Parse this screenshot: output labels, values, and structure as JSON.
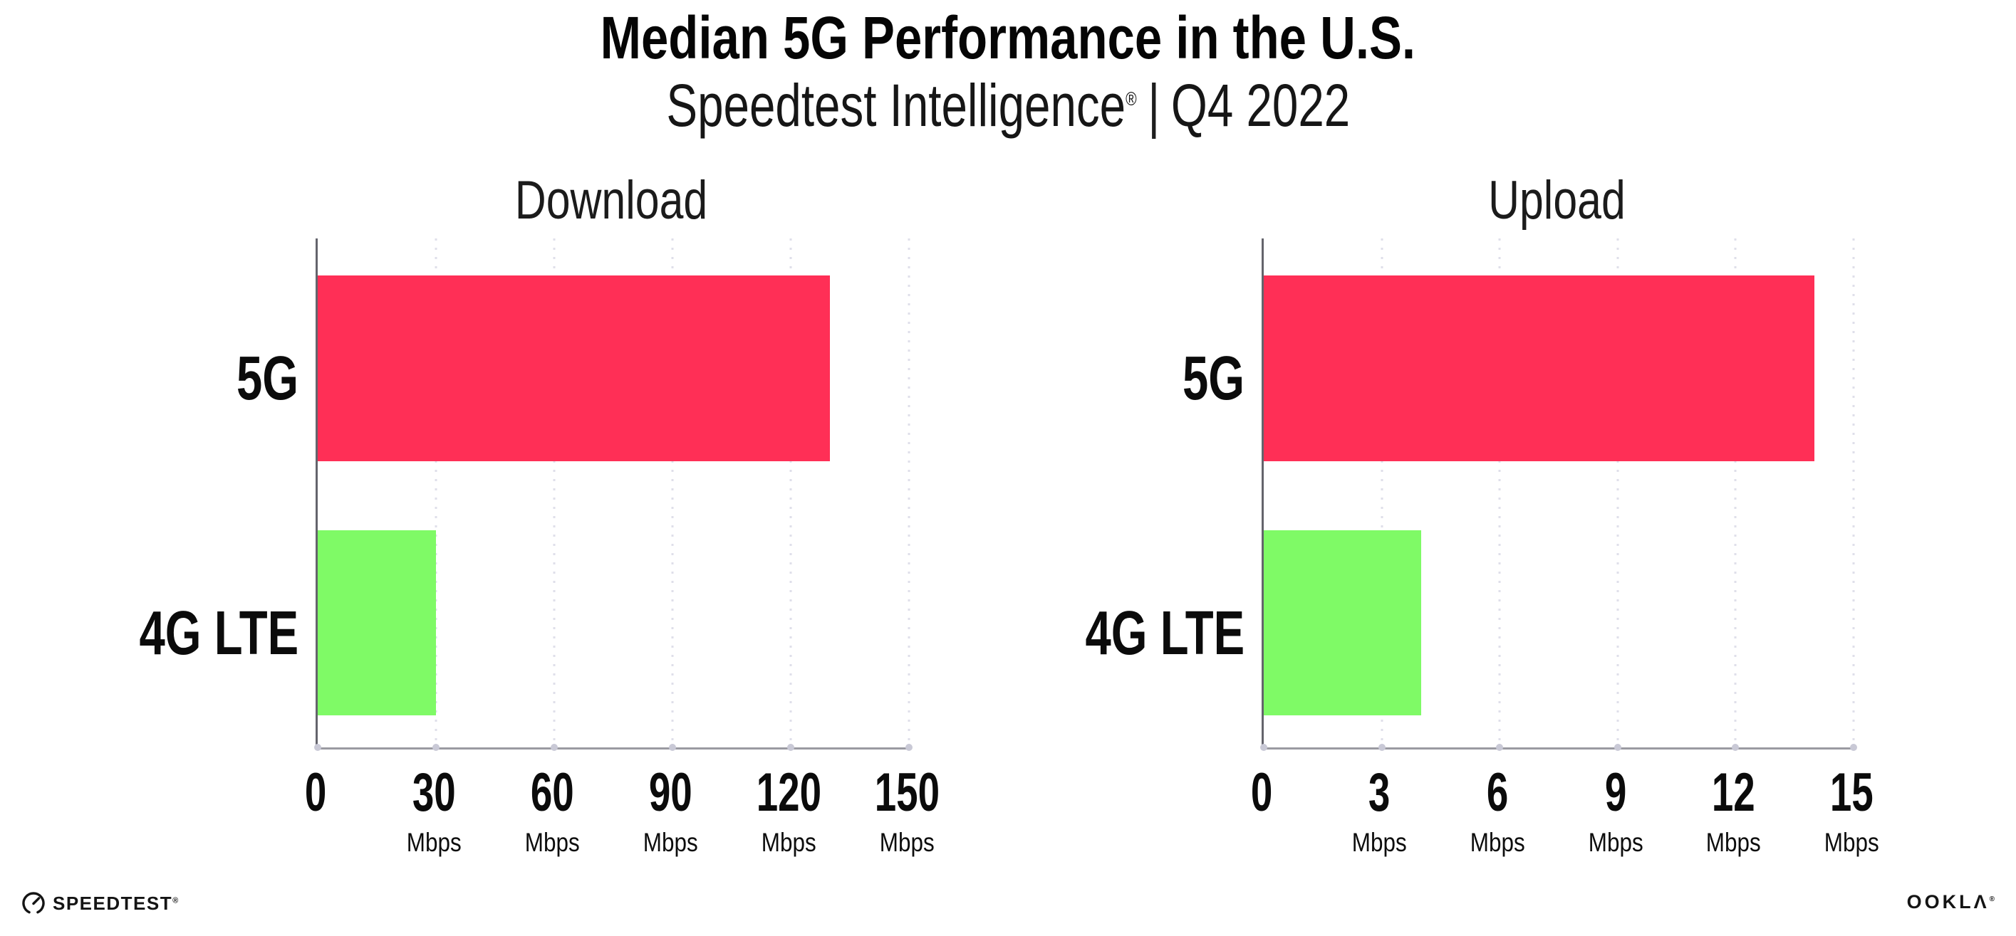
{
  "header": {
    "title": "Median 5G Performance in the U.S.",
    "subtitle_brand": "Speedtest Intelligence",
    "subtitle_reg": "®",
    "subtitle_sep": "|",
    "subtitle_period": "Q4 2022"
  },
  "chart_data": [
    {
      "type": "bar",
      "orientation": "horizontal",
      "title": "Download",
      "categories": [
        "5G",
        "4G LTE"
      ],
      "values": [
        130,
        30
      ],
      "unit": "Mbps",
      "xlim": [
        0,
        150
      ],
      "xticks": [
        0,
        30,
        60,
        90,
        120,
        150
      ],
      "bar_colors": [
        "#FF2F56",
        "#7FFA66"
      ],
      "grid": "vertical-dotted",
      "legend": "none"
    },
    {
      "type": "bar",
      "orientation": "horizontal",
      "title": "Upload",
      "categories": [
        "5G",
        "4G LTE"
      ],
      "values": [
        14,
        4
      ],
      "unit": "Mbps",
      "xlim": [
        0,
        15
      ],
      "xticks": [
        0,
        3,
        6,
        9,
        12,
        15
      ],
      "bar_colors": [
        "#FF2F56",
        "#7FFA66"
      ],
      "grid": "vertical-dotted",
      "legend": "none"
    }
  ],
  "footer": {
    "speedtest_label": "SPEEDTEST",
    "speedtest_reg": "®",
    "ookla_label": "OOKLΛ",
    "ookla_reg": "®"
  },
  "colors": {
    "bar_5g": "#FF2F56",
    "bar_4g_lte": "#7FFA66",
    "gridline": "#DFDFEA",
    "axis_bottom": "#9A9AA1",
    "axis_left": "#64646C",
    "tick_dot": "#C9C9D6",
    "text": "#0B0B0B",
    "background": "#FFFFFF"
  }
}
